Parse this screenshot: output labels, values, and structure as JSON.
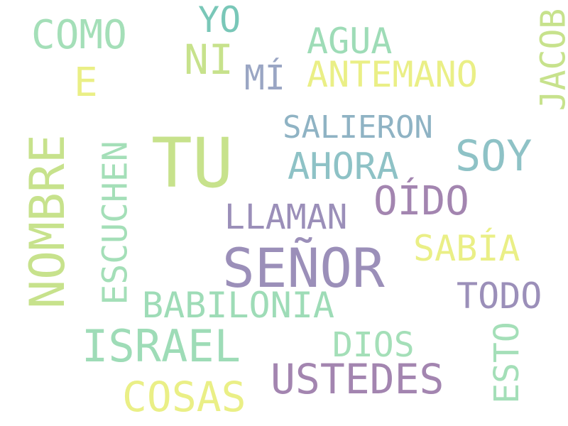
{
  "word_cloud": {
    "words": {
      "yo": "YO",
      "como": "COMO",
      "agua": "AGUA",
      "ni": "NI",
      "jacob": "JACOB",
      "e": "E",
      "mi": "MÍ",
      "antemano": "ANTEMANO",
      "salieron": "SALIERON",
      "tu": "TU",
      "soy": "SOY",
      "ahora": "AHORA",
      "nombre": "NOMBRE",
      "escuchen": "ESCUCHEN",
      "oido": "OÍDO",
      "llaman": "LLAMAN",
      "sabia": "SABÍA",
      "senor": "SEÑOR",
      "todo": "TODO",
      "babilonia": "BABILONIA",
      "israel": "ISRAEL",
      "dios": "DIOS",
      "esto": "ESTO",
      "ustedes": "USTEDES",
      "cosas": "COSAS"
    },
    "colors": {
      "light_green": "#c7e28c",
      "yellow": "#eaef86",
      "mint": "#9edcb7",
      "teal": "#79c7b8",
      "cyan": "#8ec2c6",
      "slate": "#9aa6c4",
      "steel": "#8fb3c4",
      "purple": "#9b8fb9",
      "grape": "#a385b0"
    }
  }
}
